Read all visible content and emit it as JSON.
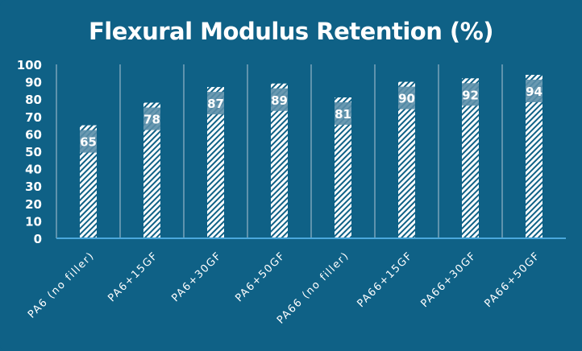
{
  "chart_data": {
    "type": "bar",
    "title": "Flexural Modulus Retention (%)",
    "categories": [
      "PA6 (no filler)",
      "PA6+15GF",
      "PA6+30GF",
      "PA6+50GF",
      "PA66 (no filler)",
      "PA66+15GF",
      "PA66+30GF",
      "PA66+50GF"
    ],
    "values": [
      65,
      78,
      87,
      89,
      81,
      90,
      92,
      94
    ],
    "data_labels": [
      "65",
      "78",
      "87",
      "89",
      "81",
      "90",
      "92",
      "94"
    ],
    "ylim": [
      0,
      100
    ],
    "yticks": [
      0,
      10,
      20,
      30,
      40,
      50,
      60,
      70,
      80,
      90,
      100
    ],
    "xlabel": "",
    "ylabel": "",
    "grid": "vertical category separators",
    "legend": "none",
    "colors": {
      "background": "#0f6186",
      "bar_pattern": "#ffffff",
      "axis": "#4aa8dc",
      "separator": "#5f93ad",
      "label_band": "#5a8ea8"
    }
  }
}
